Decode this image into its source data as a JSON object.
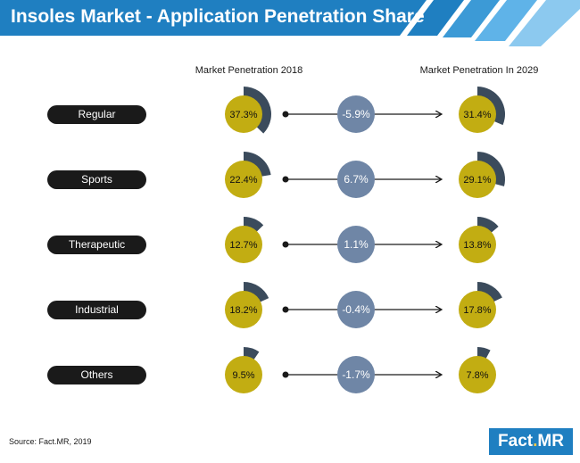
{
  "title": "Insoles Market - Application Penetration Share",
  "source": "Source: Fact.MR, 2019",
  "logo": {
    "left": "Fact",
    "dot": ".",
    "right": "MR"
  },
  "colors": {
    "banner": "#1f7fc1",
    "banner_accent": "#5fb3e8",
    "pill": "#1a1a1a",
    "share_circle": "#c2ad12",
    "share_ring": "#3b4b5c",
    "change_circle": "#6f86a6",
    "connector": "#1a1a1a"
  },
  "chart_data": {
    "type": "table",
    "columns": [
      "Market Penetration 2018",
      "Market Penetration In 2029"
    ],
    "rows": [
      {
        "label": "Regular",
        "penetration_2018": 37.3,
        "penetration_2029": 31.4,
        "change": "-5.9%",
        "label_2018": "37.3%",
        "label_2029": "31.4%"
      },
      {
        "label": "Sports",
        "penetration_2018": 22.4,
        "penetration_2029": 29.1,
        "change": "6.7%",
        "label_2018": "22.4%",
        "label_2029": "29.1%"
      },
      {
        "label": "Therapeutic",
        "penetration_2018": 12.7,
        "penetration_2029": 13.8,
        "change": "1.1%",
        "label_2018": "12.7%",
        "label_2029": "13.8%"
      },
      {
        "label": "Industrial",
        "penetration_2018": 18.2,
        "penetration_2029": 17.8,
        "change": "-0.4%",
        "label_2018": "18.2%",
        "label_2029": "17.8%"
      },
      {
        "label": "Others",
        "penetration_2018": 9.5,
        "penetration_2029": 7.8,
        "change": "-1.7%",
        "label_2018": "9.5%",
        "label_2029": "7.8%"
      }
    ]
  }
}
